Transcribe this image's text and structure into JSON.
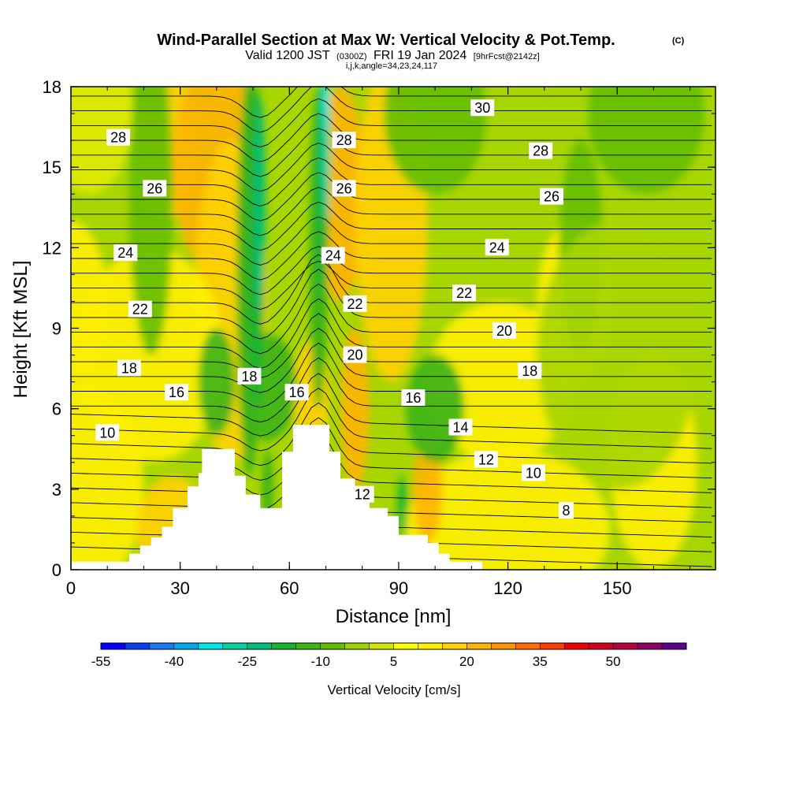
{
  "chart_data": {
    "type": "heatmap",
    "title": "Wind-Parallel Section at Max W: Vertical Velocity & Pot.Temp.",
    "title_mark": "(C)",
    "subtitle": {
      "valid": "Valid 1200 JST",
      "utc": "(0300Z)",
      "date": "FRI 19 Jan 2024",
      "fcst": "[9hrFcst@2142z]"
    },
    "subtitle2": "i,j,k,angle=34,23,24,117",
    "xlabel": "Distance [nm]",
    "ylabel": "Height [Kft MSL]",
    "xlim": [
      0,
      177
    ],
    "ylim": [
      0,
      18
    ],
    "xticks": [
      0,
      30,
      60,
      90,
      120,
      150
    ],
    "yticks": [
      0,
      3,
      6,
      9,
      12,
      15,
      18
    ],
    "colorbar": {
      "label": "Vertical Velocity [cm/s]",
      "ticks": [
        "-55",
        "-40",
        "-25",
        "-10",
        "5",
        "20",
        "35",
        "50"
      ],
      "levels": [
        -55,
        -50,
        -45,
        -40,
        -35,
        -30,
        -25,
        -20,
        -15,
        -10,
        -5,
        0,
        5,
        10,
        15,
        20,
        25,
        30,
        35,
        40,
        45,
        50,
        55,
        60
      ],
      "colors": [
        "#0000ff",
        "#0a3cf0",
        "#1a78f0",
        "#00a8f0",
        "#00e6e6",
        "#00d2a0",
        "#00be78",
        "#14b432",
        "#3cb414",
        "#64be00",
        "#a0d200",
        "#d2e600",
        "#ffff00",
        "#fff000",
        "#ffd200",
        "#ffb400",
        "#ff9600",
        "#ff6e00",
        "#ff3c00",
        "#f00000",
        "#d2001e",
        "#b4003c",
        "#8c0064",
        "#5a008c"
      ]
    },
    "theta_labels": [
      {
        "text": "28",
        "x": 13,
        "z": 16.1
      },
      {
        "text": "26",
        "x": 23,
        "z": 14.2
      },
      {
        "text": "24",
        "x": 15,
        "z": 11.8
      },
      {
        "text": "22",
        "x": 19,
        "z": 9.7
      },
      {
        "text": "18",
        "x": 16,
        "z": 7.5
      },
      {
        "text": "16",
        "x": 29,
        "z": 6.6
      },
      {
        "text": "10",
        "x": 10,
        "z": 5.1
      },
      {
        "text": "30",
        "x": 113,
        "z": 17.2
      },
      {
        "text": "28",
        "x": 75,
        "z": 16.0
      },
      {
        "text": "28",
        "x": 129,
        "z": 15.6
      },
      {
        "text": "26",
        "x": 75,
        "z": 14.2
      },
      {
        "text": "26",
        "x": 132,
        "z": 13.9
      },
      {
        "text": "24",
        "x": 72,
        "z": 11.7
      },
      {
        "text": "24",
        "x": 117,
        "z": 12.0
      },
      {
        "text": "22",
        "x": 78,
        "z": 9.9
      },
      {
        "text": "22",
        "x": 108,
        "z": 10.3
      },
      {
        "text": "20",
        "x": 78,
        "z": 8.0
      },
      {
        "text": "20",
        "x": 119,
        "z": 8.9
      },
      {
        "text": "18",
        "x": 49,
        "z": 7.2
      },
      {
        "text": "18",
        "x": 126,
        "z": 7.4
      },
      {
        "text": "16",
        "x": 62,
        "z": 6.6
      },
      {
        "text": "16",
        "x": 94,
        "z": 6.4
      },
      {
        "text": "14",
        "x": 107,
        "z": 5.3
      },
      {
        "text": "12",
        "x": 114,
        "z": 4.1
      },
      {
        "text": "12",
        "x": 80,
        "z": 2.8
      },
      {
        "text": "10",
        "x": 127,
        "z": 3.6
      },
      {
        "text": "8",
        "x": 136,
        "z": 2.2
      }
    ],
    "terrain": [
      {
        "x": 0,
        "z": 0.3
      },
      {
        "x": 16,
        "z": 0.3
      },
      {
        "x": 16,
        "z": 0.6
      },
      {
        "x": 19,
        "z": 0.6
      },
      {
        "x": 19,
        "z": 0.9
      },
      {
        "x": 22,
        "z": 0.9
      },
      {
        "x": 22,
        "z": 1.2
      },
      {
        "x": 25,
        "z": 1.2
      },
      {
        "x": 25,
        "z": 1.6
      },
      {
        "x": 28,
        "z": 1.6
      },
      {
        "x": 28,
        "z": 2.3
      },
      {
        "x": 32,
        "z": 2.3
      },
      {
        "x": 32,
        "z": 3.1
      },
      {
        "x": 35,
        "z": 3.1
      },
      {
        "x": 35,
        "z": 3.6
      },
      {
        "x": 36,
        "z": 3.6
      },
      {
        "x": 36,
        "z": 4.5
      },
      {
        "x": 45,
        "z": 4.5
      },
      {
        "x": 45,
        "z": 3.5
      },
      {
        "x": 48,
        "z": 3.5
      },
      {
        "x": 48,
        "z": 2.8
      },
      {
        "x": 52,
        "z": 2.8
      },
      {
        "x": 52,
        "z": 2.3
      },
      {
        "x": 58,
        "z": 2.3
      },
      {
        "x": 58,
        "z": 4.4
      },
      {
        "x": 61,
        "z": 4.4
      },
      {
        "x": 61,
        "z": 5.4
      },
      {
        "x": 71,
        "z": 5.4
      },
      {
        "x": 71,
        "z": 4.4
      },
      {
        "x": 74,
        "z": 4.4
      },
      {
        "x": 74,
        "z": 3.4
      },
      {
        "x": 78,
        "z": 3.4
      },
      {
        "x": 78,
        "z": 2.8
      },
      {
        "x": 82,
        "z": 2.8
      },
      {
        "x": 82,
        "z": 2.3
      },
      {
        "x": 87,
        "z": 2.3
      },
      {
        "x": 87,
        "z": 2.0
      },
      {
        "x": 90,
        "z": 2.0
      },
      {
        "x": 90,
        "z": 1.3
      },
      {
        "x": 98,
        "z": 1.3
      },
      {
        "x": 98,
        "z": 1.0
      },
      {
        "x": 101,
        "z": 1.0
      },
      {
        "x": 101,
        "z": 0.6
      },
      {
        "x": 104,
        "z": 0.6
      },
      {
        "x": 104,
        "z": 0.3
      },
      {
        "x": 113,
        "z": 0.3
      },
      {
        "x": 113,
        "z": 0.0
      },
      {
        "x": 0,
        "z": 0.0
      }
    ]
  }
}
